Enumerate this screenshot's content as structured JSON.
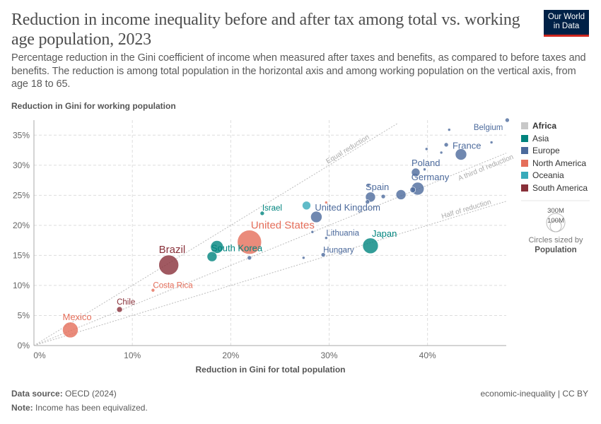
{
  "title": "Reduction in income inequality before and after tax among total vs. working age population, 2023",
  "subtitle": "Percentage reduction in the Gini coefficient of income when measured after taxes and benefits, as compared to before taxes and benefits. The reduction is among total population in the horizontal axis and among working population on the vertical axis, from age 18 to 65.",
  "logo": "Our World in Data",
  "footer": {
    "source_label": "Data source:",
    "source": "OECD (2024)",
    "note_label": "Note:",
    "note": "Income has been equivalized.",
    "license": "economic-inequality | CC BY"
  },
  "legend": {
    "entries": [
      {
        "name": "Africa",
        "color": "#c8c8c8"
      },
      {
        "name": "Asia",
        "color": "#00847e"
      },
      {
        "name": "Europe",
        "color": "#4c6a9c"
      },
      {
        "name": "North America",
        "color": "#e56e5a"
      },
      {
        "name": "Oceania",
        "color": "#38aaba"
      },
      {
        "name": "South America",
        "color": "#883039"
      }
    ],
    "size_title": "Circles sized by",
    "size_var": "Population",
    "size_labels": [
      "300M",
      "100M"
    ]
  },
  "chart_data": {
    "type": "scatter",
    "xlabel": "Reduction in Gini for total population",
    "ylabel": "Reduction in Gini for working population",
    "xlim": [
      0,
      48
    ],
    "ylim": [
      0,
      37.5
    ],
    "xticks": [
      0,
      10,
      20,
      30,
      40
    ],
    "yticks": [
      0,
      5,
      10,
      15,
      20,
      25,
      30,
      35
    ],
    "tick_format": "%",
    "grid": true,
    "reference_lines": [
      {
        "label": "Equal reduction",
        "slope": 1
      },
      {
        "label": "A third of reduction",
        "slope": 0.667
      },
      {
        "label": "Half of reduction",
        "slope": 0.5
      }
    ],
    "points": [
      {
        "label": "Mexico",
        "region": "North America",
        "x": 3.7,
        "y": 2.6,
        "size": 11
      },
      {
        "label": "Chile",
        "region": "South America",
        "x": 8.7,
        "y": 6.0,
        "size": 4
      },
      {
        "label": "Costa Rica",
        "region": "North America",
        "x": 12.1,
        "y": 9.2,
        "size": 2.5
      },
      {
        "label": "Brazil",
        "region": "South America",
        "x": 13.7,
        "y": 13.4,
        "size": 14
      },
      {
        "label": "South Korea",
        "region": "Asia",
        "x": 18.6,
        "y": 16.4,
        "size": 9
      },
      {
        "label": "",
        "region": "Asia",
        "x": 18.1,
        "y": 14.8,
        "size": 7
      },
      {
        "label": "United States",
        "region": "North America",
        "x": 21.9,
        "y": 17.2,
        "size": 17
      },
      {
        "label": "Israel",
        "region": "Asia",
        "x": 23.2,
        "y": 22.0,
        "size": 3
      },
      {
        "label": "",
        "region": "Europe",
        "x": 21.9,
        "y": 14.6,
        "size": 3
      },
      {
        "label": "",
        "region": "Oceania",
        "x": 27.7,
        "y": 23.3,
        "size": 6
      },
      {
        "label": "",
        "region": "North America",
        "x": 29.7,
        "y": 23.8,
        "size": 2
      },
      {
        "label": "United Kingdom",
        "region": "Europe",
        "x": 28.7,
        "y": 21.4,
        "size": 8
      },
      {
        "label": "",
        "region": "Europe",
        "x": 28.3,
        "y": 18.9,
        "size": 2
      },
      {
        "label": "Lithuania",
        "region": "Europe",
        "x": 29.7,
        "y": 17.9,
        "size": 2
      },
      {
        "label": "",
        "region": "Europe",
        "x": 27.4,
        "y": 14.6,
        "size": 2
      },
      {
        "label": "Hungary",
        "region": "Europe",
        "x": 29.4,
        "y": 15.1,
        "size": 3
      },
      {
        "label": "Japan",
        "region": "Asia",
        "x": 34.2,
        "y": 16.6,
        "size": 11
      },
      {
        "label": "Spain",
        "region": "Europe",
        "x": 34.2,
        "y": 24.7,
        "size": 7
      },
      {
        "label": "",
        "region": "Europe",
        "x": 34.0,
        "y": 26.7,
        "size": 2
      },
      {
        "label": "",
        "region": "Europe",
        "x": 33.9,
        "y": 23.9,
        "size": 3
      },
      {
        "label": "",
        "region": "Europe",
        "x": 35.5,
        "y": 24.8,
        "size": 3
      },
      {
        "label": "",
        "region": "Europe",
        "x": 37.3,
        "y": 25.1,
        "size": 7
      },
      {
        "label": "",
        "region": "Europe",
        "x": 38.5,
        "y": 25.9,
        "size": 4
      },
      {
        "label": "Germany",
        "region": "Europe",
        "x": 39.0,
        "y": 26.1,
        "size": 9
      },
      {
        "label": "Poland",
        "region": "Europe",
        "x": 38.8,
        "y": 28.8,
        "size": 6
      },
      {
        "label": "",
        "region": "Europe",
        "x": 39.7,
        "y": 29.3,
        "size": 2
      },
      {
        "label": "",
        "region": "Europe",
        "x": 39.9,
        "y": 32.7,
        "size": 2
      },
      {
        "label": "",
        "region": "Europe",
        "x": 41.4,
        "y": 32.1,
        "size": 2
      },
      {
        "label": "",
        "region": "Europe",
        "x": 41.9,
        "y": 33.4,
        "size": 3
      },
      {
        "label": "",
        "region": "Europe",
        "x": 42.2,
        "y": 35.9,
        "size": 2
      },
      {
        "label": "France",
        "region": "Europe",
        "x": 43.4,
        "y": 31.8,
        "size": 8
      },
      {
        "label": "",
        "region": "Europe",
        "x": 46.5,
        "y": 33.8,
        "size": 2
      },
      {
        "label": "Belgium",
        "region": "Europe",
        "x": 48.1,
        "y": 37.5,
        "size": 3
      }
    ]
  }
}
